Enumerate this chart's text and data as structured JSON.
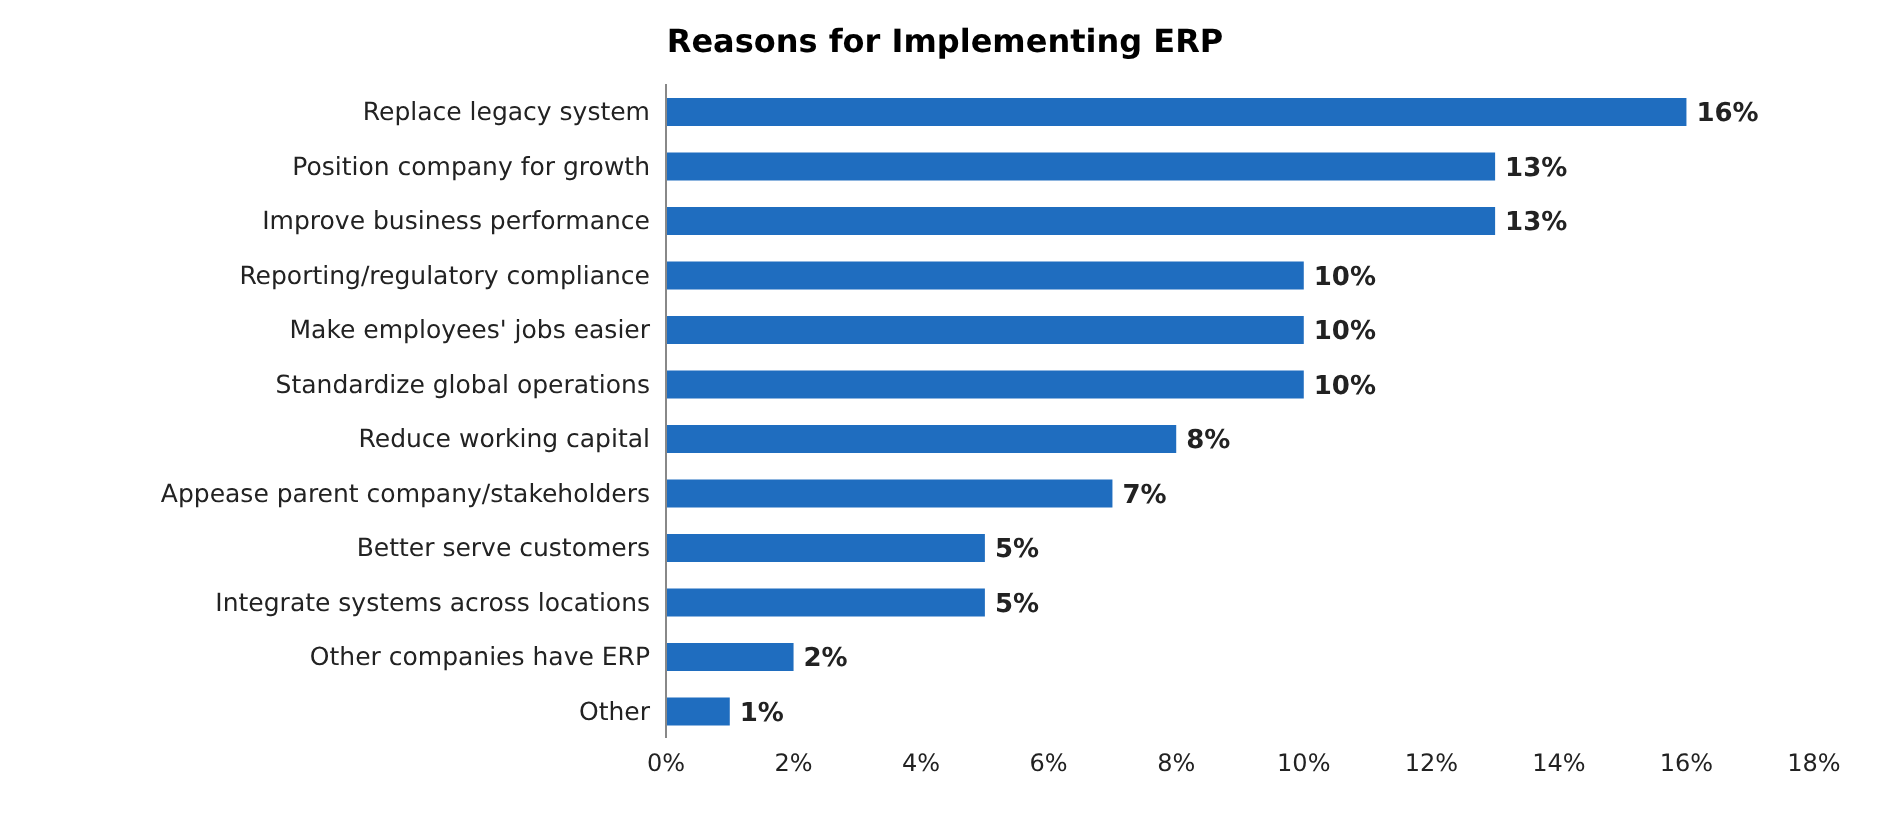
{
  "chart_data": {
    "type": "bar",
    "orientation": "horizontal",
    "title": "Reasons for Implementing ERP",
    "categories": [
      "Replace legacy system",
      "Position company for growth",
      "Improve business performance",
      "Reporting/regulatory compliance",
      "Make employees' jobs easier",
      "Standardize global operations",
      "Reduce working capital",
      "Appease parent company/stakeholders",
      "Better serve customers",
      "Integrate systems across locations",
      "Other companies have ERP",
      "Other"
    ],
    "values": [
      16,
      13,
      13,
      10,
      10,
      10,
      8,
      7,
      5,
      5,
      2,
      1
    ],
    "value_labels": [
      "16%",
      "13%",
      "13%",
      "10%",
      "10%",
      "10%",
      "8%",
      "7%",
      "5%",
      "5%",
      "2%",
      "1%"
    ],
    "color": "#1f6dbf",
    "xlim": [
      0,
      18
    ],
    "xticks": [
      {
        "value": 0,
        "label": "0%"
      },
      {
        "value": 2,
        "label": "2%"
      },
      {
        "value": 4,
        "label": "4%"
      },
      {
        "value": 6,
        "label": "6%"
      },
      {
        "value": 8,
        "label": "8%"
      },
      {
        "value": 10,
        "label": "10%"
      },
      {
        "value": 12,
        "label": "12%"
      },
      {
        "value": 14,
        "label": "14%"
      },
      {
        "value": 16,
        "label": "16%"
      },
      {
        "value": 18,
        "label": "18%"
      }
    ],
    "grid": false,
    "legend": false
  }
}
